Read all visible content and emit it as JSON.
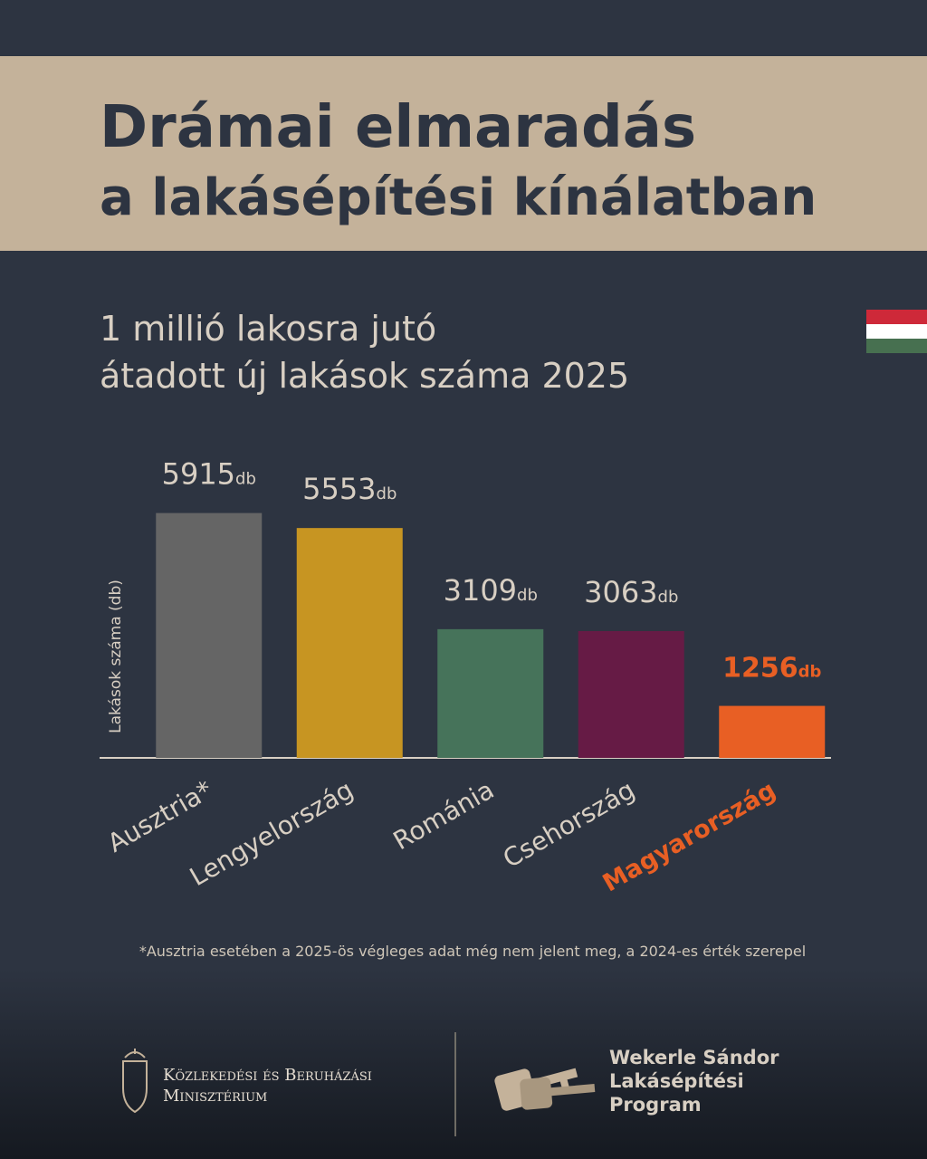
{
  "chart_data": {
    "type": "bar",
    "title": [
      "Drámai elmaradás",
      "a lakásépítési kínálatban"
    ],
    "subtitle": [
      "1 millió lakosra jutó",
      "átadott új lakások száma 2025"
    ],
    "y_label": "Lakások száma (db)",
    "categories": [
      "Ausztria*",
      "Lengyelország",
      "Románia",
      "Csehország",
      "Magyarország"
    ],
    "values": [
      5915,
      5553,
      3109,
      3063,
      1256
    ],
    "unit": "db",
    "colors": [
      "#656565",
      "#c79522",
      "#46735a",
      "#661b45",
      "#e85f24"
    ],
    "highlight_index": 4,
    "ylim": [
      0,
      7000
    ],
    "footnote": "*Ausztria esetében a 2025-ös végleges adat még nem jelent meg, a 2024-es érték szerepel"
  },
  "footer": {
    "ministry": [
      "Közlekedési és Beruházási",
      "Minisztérium"
    ],
    "program": [
      "Wekerle Sándor",
      "Lakásépítési",
      "Program"
    ]
  }
}
